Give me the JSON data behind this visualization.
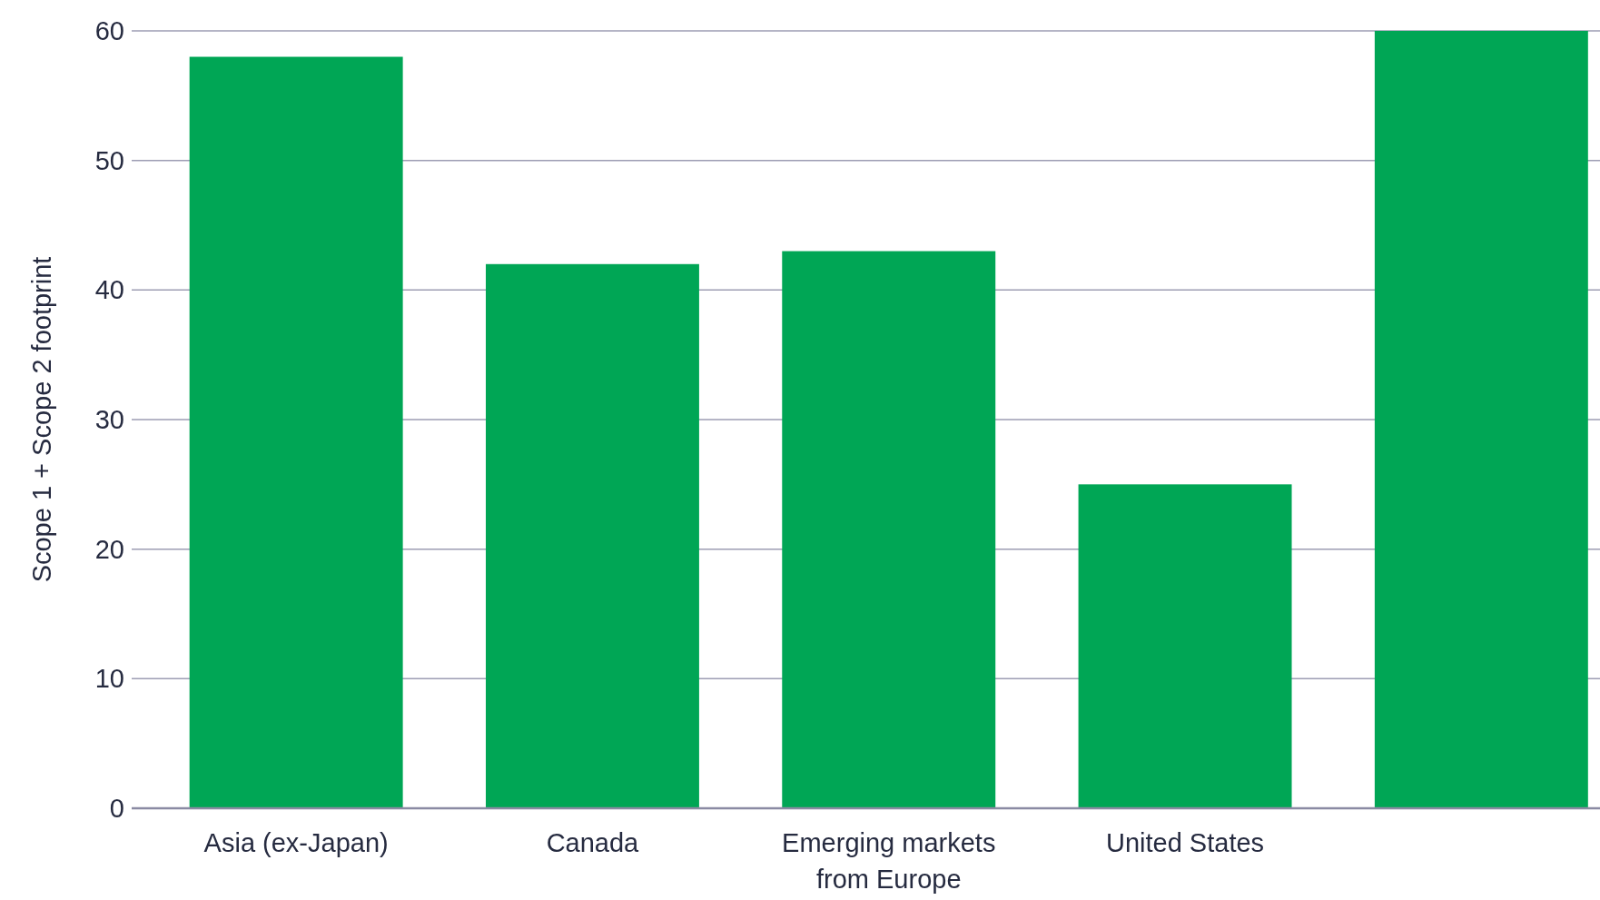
{
  "chart_data": {
    "type": "bar",
    "ylabel": "Scope 1 + Scope 2 footprint",
    "categories": [
      "Asia (ex-Japan)",
      "Canada",
      "Emerging markets from Europe",
      "United States",
      null
    ],
    "values": [
      58,
      42,
      43,
      25,
      60
    ],
    "color": "#00a655",
    "ylim": [
      0,
      60
    ],
    "yticks": [
      0,
      10,
      20,
      30,
      40,
      50,
      60
    ],
    "grid": "y"
  }
}
